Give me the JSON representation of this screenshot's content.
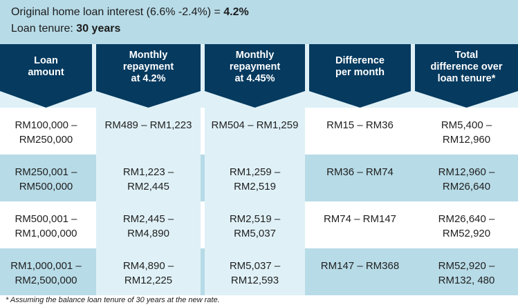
{
  "intro": {
    "line1_prefix": "Original home loan interest (6.6% -2.4%) = ",
    "line1_value": "4.2%",
    "line2_prefix": "Loan tenure: ",
    "line2_value": "30 years"
  },
  "colors": {
    "header_dark": "#063a5f",
    "light_band": "#b7dbe7",
    "pale_band": "#dff1f7",
    "white": "#ffffff"
  },
  "table": {
    "headers": [
      "Loan\namount",
      "Monthly\nrepayment\nat 4.2%",
      "Monthly\nrepayment\nat 4.45%",
      "Difference\nper month",
      "Total\ndifference over\nloan tenure*"
    ],
    "rows": [
      [
        "RM100,000 –\nRM250,000",
        "RM489 – RM1,223",
        "RM504 – RM1,259",
        "RM15 – RM36",
        "RM5,400 –\nRM12,960"
      ],
      [
        "RM250,001 –\nRM500,000",
        "RM1,223 –\nRM2,445",
        "RM1,259 –\nRM2,519",
        "RM36 – RM74",
        "RM12,960 –\nRM26,640"
      ],
      [
        "RM500,001 –\nRM1,000,000",
        "RM2,445 –\nRM4,890",
        "RM2,519 –\nRM5,037",
        "RM74 – RM147",
        "RM26,640 –\nRM52,920"
      ],
      [
        "RM1,000,001 –\nRM2,500,000",
        "RM4,890 –\nRM12,225",
        "RM5,037 –\nRM12,593",
        "RM147 – RM368",
        "RM52,920 –\nRM132, 480"
      ]
    ]
  },
  "footnote": "* Assuming the balance loan tenure of 30 years at the new rate."
}
